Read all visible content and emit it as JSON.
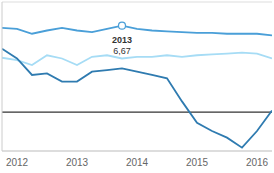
{
  "chart_data": {
    "type": "line",
    "x": [
      2011.75,
      2012,
      2012.25,
      2012.5,
      2012.75,
      2013,
      2013.25,
      2013.5,
      2013.75,
      2014,
      2014.25,
      2014.5,
      2014.75,
      2015,
      2015.25,
      2015.5,
      2015.75,
      2016,
      2016.25
    ],
    "series": [
      {
        "color": "#4a9fd8",
        "values": [
          6.5,
          6.43,
          6.05,
          6.3,
          6.5,
          6.3,
          6.18,
          6.43,
          6.67,
          6.43,
          6.3,
          6.24,
          6.18,
          6.11,
          6.11,
          6.05,
          6.05,
          6.05,
          5.92
        ]
      },
      {
        "color": "#a6dcf5",
        "values": [
          4.2,
          4.01,
          3.63,
          4.39,
          4.14,
          3.63,
          4.27,
          4.39,
          4.14,
          4.27,
          4.27,
          4.39,
          4.27,
          4.39,
          4.46,
          4.52,
          4.59,
          4.52,
          4.14
        ]
      },
      {
        "color": "#2f7bb0",
        "values": [
          4.9,
          4.14,
          2.87,
          2.99,
          2.36,
          2.36,
          3.12,
          3.25,
          3.38,
          3.12,
          2.87,
          2.61,
          0.83,
          -0.83,
          -1.46,
          -1.97,
          -2.74,
          -1.46,
          0.13
        ]
      }
    ],
    "xlim": [
      2011.75,
      2016.25
    ],
    "xticks": [
      2012,
      2013,
      2014,
      2015,
      2016
    ],
    "ylim": [
      -3,
      8.5
    ],
    "yticks": [
      0,
      2,
      4,
      6
    ],
    "grid": true,
    "tick_labels": "x",
    "annotation": {
      "text": "2013",
      "x": 2013.75,
      "y": 6.67,
      "label": "6,67"
    }
  }
}
